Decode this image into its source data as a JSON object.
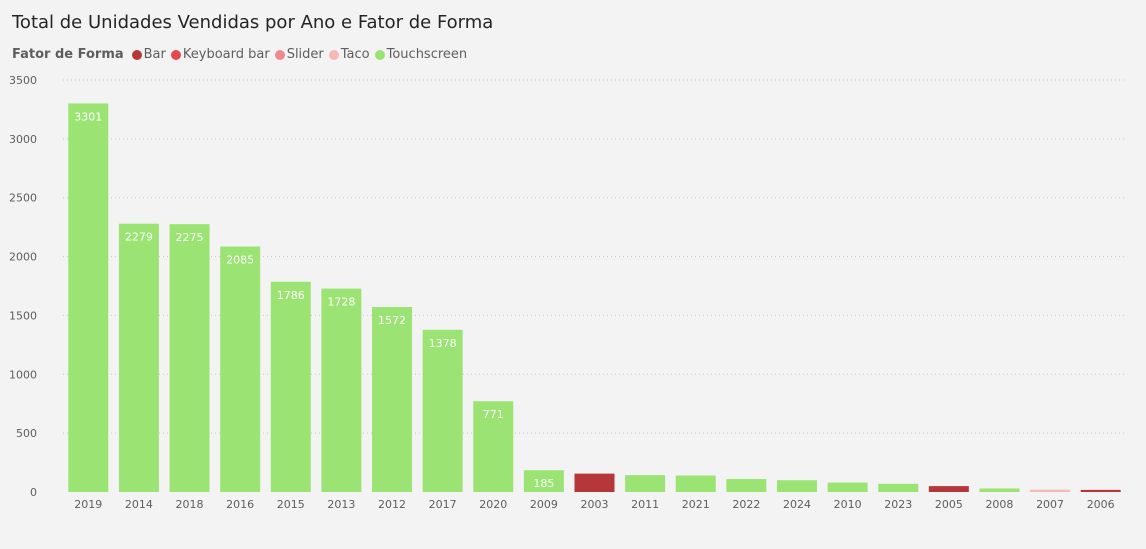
{
  "title": "Total de Unidades Vendidas por Ano e Fator de Forma",
  "legend": {
    "title": "Fator de Forma",
    "items": [
      {
        "label": "Bar",
        "color": "#b5373a"
      },
      {
        "label": "Keyboard bar",
        "color": "#e5484d"
      },
      {
        "label": "Slider",
        "color": "#ee8a8c"
      },
      {
        "label": "Taco",
        "color": "#f7b9b6"
      },
      {
        "label": "Touchscreen",
        "color": "#9be474"
      }
    ]
  },
  "chart_data": {
    "type": "bar",
    "title": "Total de Unidades Vendidas por Ano e Fator de Forma",
    "xlabel": "",
    "ylabel": "",
    "ylim": [
      0,
      3500
    ],
    "yticks": [
      0,
      500,
      1000,
      1500,
      2000,
      2500,
      3000,
      3500
    ],
    "grid": true,
    "legend_position": "top-left",
    "categories": [
      "2019",
      "2014",
      "2018",
      "2016",
      "2015",
      "2013",
      "2012",
      "2017",
      "2020",
      "2009",
      "2003",
      "2011",
      "2021",
      "2022",
      "2024",
      "2010",
      "2023",
      "2005",
      "2008",
      "2007",
      "2006"
    ],
    "values": [
      3301,
      2279,
      2275,
      2085,
      1786,
      1728,
      1572,
      1378,
      771,
      185,
      156,
      143,
      140,
      110,
      100,
      80,
      70,
      50,
      30,
      20,
      18
    ],
    "colors": [
      "#9be474",
      "#9be474",
      "#9be474",
      "#9be474",
      "#9be474",
      "#9be474",
      "#9be474",
      "#9be474",
      "#9be474",
      "#9be474",
      "#b5373a",
      "#9be474",
      "#9be474",
      "#9be474",
      "#9be474",
      "#9be474",
      "#9be474",
      "#b5373a",
      "#9be474",
      "#f7b9b6",
      "#b5373a"
    ],
    "data_labels": [
      "3301",
      "2279",
      "2275",
      "2085",
      "1786",
      "1728",
      "1572",
      "1378",
      "771",
      "185",
      "",
      "",
      "",
      "",
      "",
      "",
      "",
      "",
      "",
      "",
      ""
    ]
  }
}
